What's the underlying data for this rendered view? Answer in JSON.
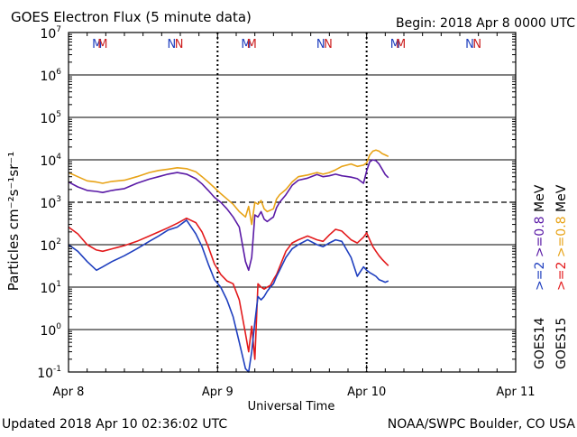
{
  "chart_data": {
    "type": "line",
    "title": "GOES Electron Flux (5 minute data)",
    "begin_label": "Begin: 2018 Apr 8 0000 UTC",
    "xlabel": "Universal Time",
    "ylabel": "Particles cm⁻²s⁻¹sr⁻¹",
    "y_scale": "log",
    "ylim": [
      0.1,
      10000000
    ],
    "y_ticks": [
      {
        "base": "10",
        "exp": "7"
      },
      {
        "base": "10",
        "exp": "6"
      },
      {
        "base": "10",
        "exp": "5"
      },
      {
        "base": "10",
        "exp": "4"
      },
      {
        "base": "10",
        "exp": "3"
      },
      {
        "base": "10",
        "exp": "2"
      },
      {
        "base": "10",
        "exp": "1"
      },
      {
        "base": "10",
        "exp": "0"
      },
      {
        "base": "10",
        "exp": "-1"
      }
    ],
    "xlim": [
      "2018-04-08 00:00",
      "2018-04-11 00:00"
    ],
    "x_ticks": [
      "Apr 8",
      "Apr 9",
      "Apr 10",
      "Apr 11"
    ],
    "grid": true,
    "alert_threshold": 1000,
    "markers": [
      {
        "label": "M",
        "day": "Apr 8",
        "hour": 4.6,
        "color": "#1f3fbf"
      },
      {
        "label": "M",
        "day": "Apr 8",
        "hour": 5.5,
        "color": "#cc1f1f"
      },
      {
        "label": "N",
        "day": "Apr 8",
        "hour": 16.6,
        "color": "#1f3fbf"
      },
      {
        "label": "N",
        "day": "Apr 8",
        "hour": 17.8,
        "color": "#cc1f1f"
      },
      {
        "label": "M",
        "day": "Apr 9",
        "hour": 4.6,
        "color": "#1f3fbf"
      },
      {
        "label": "M",
        "day": "Apr 9",
        "hour": 5.5,
        "color": "#cc1f1f"
      },
      {
        "label": "N",
        "day": "Apr 9",
        "hour": 16.6,
        "color": "#1f3fbf"
      },
      {
        "label": "N",
        "day": "Apr 9",
        "hour": 17.8,
        "color": "#cc1f1f"
      },
      {
        "label": "M",
        "day": "Apr 10",
        "hour": 4.6,
        "color": "#1f3fbf"
      },
      {
        "label": "M",
        "day": "Apr 10",
        "hour": 5.5,
        "color": "#cc1f1f"
      },
      {
        "label": "N",
        "day": "Apr 10",
        "hour": 16.6,
        "color": "#1f3fbf"
      },
      {
        "label": "N",
        "day": "Apr 10",
        "hour": 17.8,
        "color": "#cc1f1f"
      }
    ],
    "series": [
      {
        "name": "GOES15 >=0.8 MeV",
        "color": "#e8a317",
        "x_hours": [
          0,
          1.5,
          3,
          4.5,
          5.5,
          7,
          9,
          11,
          13,
          14.5,
          16,
          17.5,
          19,
          20.5,
          21.5,
          22.5,
          23.5,
          24.5,
          25.5,
          26.5,
          27.5,
          28.5,
          29,
          29.5,
          30,
          30.5,
          31,
          31.5,
          32,
          32.5,
          33,
          33.5,
          34,
          35,
          36,
          37,
          38.5,
          40,
          41,
          42,
          43,
          44,
          45.5,
          46.5,
          47.5,
          48,
          48.5,
          49,
          49.5,
          50,
          50.5,
          51,
          51.5
        ],
        "y": [
          5000,
          4000,
          3200,
          3000,
          2800,
          3100,
          3300,
          4000,
          5000,
          5600,
          6000,
          6500,
          6200,
          5200,
          4000,
          3000,
          2200,
          1600,
          1200,
          900,
          600,
          450,
          800,
          300,
          1000,
          900,
          1100,
          700,
          600,
          650,
          700,
          1200,
          1500,
          2000,
          3000,
          4000,
          4400,
          5000,
          4600,
          5000,
          5800,
          7000,
          8000,
          7000,
          7500,
          8500,
          13000,
          16000,
          17000,
          16000,
          14000,
          13000,
          12000
        ]
      },
      {
        "name": "GOES14 >=0.8 MeV",
        "color": "#5a1aa6",
        "x_hours": [
          0,
          1.5,
          3,
          4.5,
          5.5,
          7,
          9,
          11,
          13,
          14.5,
          16,
          17.5,
          19,
          20.5,
          21.5,
          22.5,
          23.5,
          24.5,
          25.5,
          26.5,
          27.5,
          28.5,
          29,
          29.5,
          30,
          30.5,
          31,
          31.5,
          32,
          32.5,
          33,
          33.5,
          34,
          35,
          36,
          37,
          38.5,
          40,
          41,
          42,
          43,
          44,
          45.5,
          46.5,
          47.5,
          48,
          48.5,
          49,
          49.5,
          50,
          50.5,
          51,
          51.5
        ],
        "y": [
          3000,
          2300,
          1900,
          1800,
          1700,
          1900,
          2100,
          2800,
          3500,
          4000,
          4600,
          5000,
          4600,
          3600,
          2700,
          1900,
          1300,
          1000,
          700,
          450,
          260,
          40,
          25,
          50,
          500,
          450,
          600,
          400,
          350,
          400,
          450,
          750,
          1000,
          1500,
          2500,
          3300,
          3700,
          4500,
          4000,
          4200,
          4600,
          4200,
          3900,
          3600,
          2800,
          5500,
          9000,
          10000,
          9500,
          8000,
          6000,
          4500,
          3800
        ]
      },
      {
        "name": "GOES15 >=2 MeV",
        "color": "#e31a1c",
        "x_hours": [
          0,
          1.5,
          3,
          4.5,
          5.5,
          7,
          9,
          11,
          13,
          14.5,
          16,
          17.5,
          19,
          20.5,
          21.5,
          22.5,
          23.5,
          24.5,
          25.5,
          26.5,
          27.5,
          28.5,
          29,
          29.5,
          30,
          30.5,
          31,
          31.5,
          32,
          32.5,
          33,
          33.5,
          34,
          35,
          36,
          37,
          38.5,
          40,
          41,
          42,
          43,
          44,
          45.5,
          46.5,
          47.5,
          48,
          48.5,
          49,
          49.5,
          50,
          50.5,
          51,
          51.5
        ],
        "y": [
          260,
          180,
          100,
          75,
          70,
          80,
          95,
          120,
          160,
          200,
          250,
          320,
          420,
          330,
          200,
          90,
          35,
          20,
          14,
          12,
          5,
          0.8,
          0.3,
          1.2,
          0.2,
          12,
          10,
          9,
          10,
          11,
          15,
          20,
          30,
          70,
          110,
          130,
          160,
          130,
          120,
          170,
          230,
          210,
          130,
          110,
          150,
          190,
          130,
          90,
          70,
          55,
          45,
          38,
          32
        ]
      },
      {
        "name": "GOES14 >=2 MeV",
        "color": "#1f3fbf",
        "x_hours": [
          0,
          1.5,
          3,
          4.5,
          5.5,
          7,
          9,
          11,
          13,
          14.5,
          16,
          17.5,
          19,
          20.5,
          21.5,
          22.5,
          23.5,
          24.5,
          25.5,
          26.5,
          27.5,
          28.5,
          29,
          29.5,
          30,
          30.5,
          31,
          31.5,
          32,
          32.5,
          33,
          33.5,
          34,
          35,
          36,
          37,
          38.5,
          40,
          41,
          42,
          43,
          44,
          45.5,
          46.5,
          47.5,
          48,
          48.5,
          49,
          49.5,
          50,
          50.5,
          51,
          51.5
        ],
        "y": [
          100,
          70,
          40,
          25,
          30,
          40,
          55,
          80,
          120,
          160,
          220,
          260,
          380,
          180,
          90,
          35,
          15,
          10,
          5,
          2,
          0.5,
          0.12,
          0.1,
          0.3,
          1.5,
          6,
          5,
          6,
          8,
          10,
          12,
          18,
          25,
          50,
          80,
          100,
          130,
          100,
          90,
          110,
          130,
          120,
          50,
          18,
          30,
          25,
          22,
          20,
          18,
          15,
          14,
          13,
          14
        ]
      }
    ],
    "right_labels": {
      "groups": [
        {
          "series": "GOES15",
          "color": "#000000"
        },
        {
          "series": "GOES14",
          "color": "#000000"
        }
      ],
      "energy_2": [
        {
          "text": ">=2",
          "color": "#e31a1c"
        },
        {
          "text": ">=2",
          "color": "#1f3fbf"
        }
      ],
      "energy_08": [
        {
          "text": ">=0.8",
          "color": "#e8a317"
        },
        {
          "text": ">=0.8",
          "color": "#5a1aa6"
        }
      ],
      "units": "MeV"
    }
  },
  "footer": {
    "updated": "Updated 2018 Apr 10 02:36:02 UTC",
    "credit": "NOAA/SWPC Boulder, CO USA"
  }
}
